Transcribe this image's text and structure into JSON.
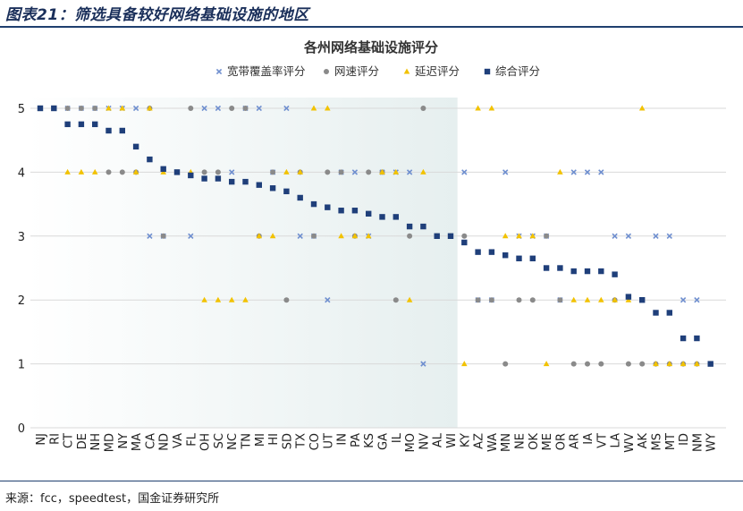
{
  "figure": {
    "title": "图表21：筛选具备较好网络基础设施的地区",
    "source": "来源：fcc，speedtest，国金证券研究所"
  },
  "chart_data": {
    "type": "scatter",
    "title": "各州网络基础设施评分",
    "categories": [
      "NJ",
      "RI",
      "CT",
      "DE",
      "NH",
      "MD",
      "NY",
      "MA",
      "CA",
      "ND",
      "VA",
      "FL",
      "OH",
      "SC",
      "NC",
      "TN",
      "MI",
      "HI",
      "SD",
      "TX",
      "CO",
      "UT",
      "IN",
      "PA",
      "KS",
      "GA",
      "IL",
      "MO",
      "NV",
      "AL",
      "WI",
      "KY",
      "AZ",
      "WA",
      "MN",
      "NE",
      "OK",
      "ME",
      "OR",
      "AR",
      "IA",
      "VT",
      "LA",
      "WV",
      "AK",
      "MS",
      "MT",
      "ID",
      "NM",
      "WY"
    ],
    "ylim": [
      0,
      5
    ],
    "yticks": [
      "0",
      "1",
      "2",
      "3",
      "4",
      "5"
    ],
    "grid": true,
    "legend_position": "top",
    "highlight_range": [
      "NJ",
      "WI"
    ],
    "colors": {
      "coverage": "#6f8fcf",
      "speed": "#8a8a8a",
      "latency": "#f2c200",
      "overall": "#1f3f7a",
      "highlight": "#e6efef"
    },
    "series": [
      {
        "name": "宽带覆盖率评分",
        "key": "coverage",
        "marker": "x",
        "values": [
          5,
          5,
          5,
          5,
          5,
          5,
          5,
          5,
          3,
          3,
          4,
          3,
          5,
          5,
          4,
          5,
          5,
          4,
          5,
          3,
          3,
          2,
          4,
          4,
          3,
          4,
          4,
          4,
          1,
          3,
          3,
          4,
          2,
          2,
          4,
          3,
          3,
          3,
          2,
          4,
          4,
          4,
          3,
          3,
          2,
          3,
          3,
          2,
          2,
          1
        ]
      },
      {
        "name": "网速评分",
        "key": "speed",
        "marker": "circle",
        "values": [
          5,
          5,
          5,
          5,
          5,
          4,
          4,
          4,
          5,
          3,
          4,
          5,
          4,
          4,
          5,
          5,
          3,
          4,
          2,
          4,
          3,
          4,
          4,
          3,
          4,
          4,
          2,
          3,
          5,
          3,
          3,
          3,
          2,
          2,
          1,
          2,
          2,
          3,
          2,
          1,
          1,
          1,
          2,
          1,
          1,
          1,
          1,
          1,
          1,
          1
        ]
      },
      {
        "name": "延迟评分",
        "key": "latency",
        "marker": "triangle",
        "values": [
          5,
          5,
          4,
          4,
          4,
          5,
          5,
          4,
          5,
          4,
          4,
          4,
          2,
          2,
          2,
          2,
          3,
          3,
          4,
          4,
          5,
          5,
          3,
          3,
          3,
          4,
          4,
          2,
          4,
          3,
          3,
          1,
          5,
          5,
          3,
          3,
          3,
          1,
          4,
          2,
          2,
          2,
          2,
          2,
          5,
          1,
          1,
          1,
          1,
          1
        ]
      },
      {
        "name": "综合评分",
        "key": "overall",
        "marker": "square",
        "values": [
          5,
          5,
          4.75,
          4.75,
          4.75,
          4.65,
          4.65,
          4.4,
          4.2,
          4.05,
          4,
          3.95,
          3.9,
          3.9,
          3.85,
          3.85,
          3.8,
          3.75,
          3.7,
          3.6,
          3.5,
          3.45,
          3.4,
          3.4,
          3.35,
          3.3,
          3.3,
          3.15,
          3.15,
          3,
          3,
          2.9,
          2.75,
          2.75,
          2.7,
          2.65,
          2.65,
          2.5,
          2.5,
          2.45,
          2.45,
          2.45,
          2.4,
          2.05,
          2,
          1.8,
          1.8,
          1.4,
          1.4,
          1
        ]
      }
    ]
  }
}
